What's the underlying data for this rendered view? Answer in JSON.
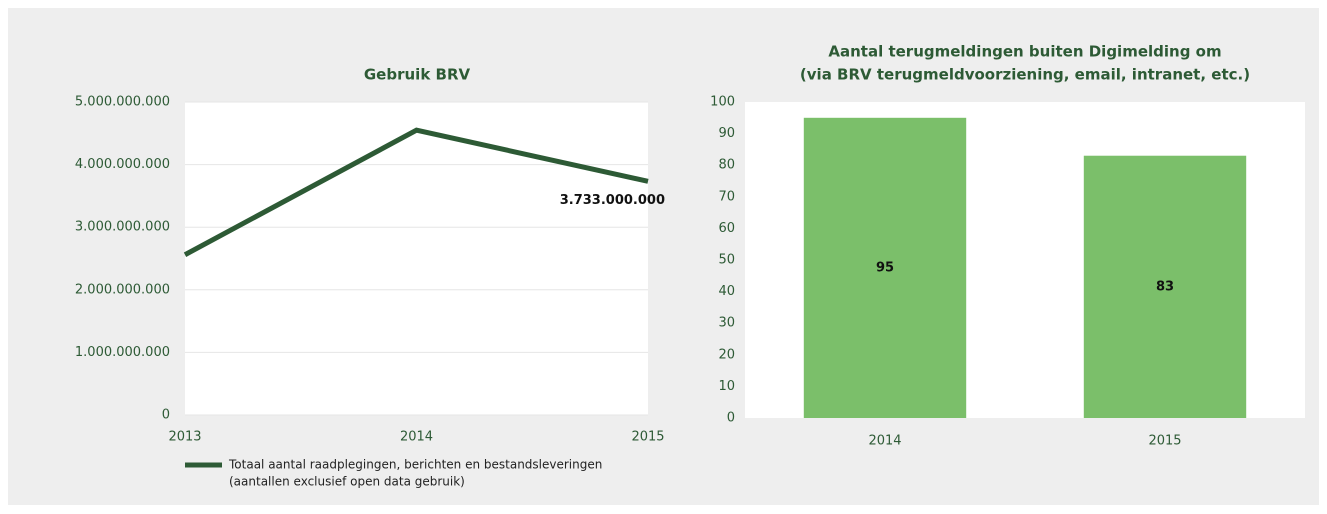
{
  "chart_data": [
    {
      "type": "line",
      "title": "Gebruik  BRV",
      "x": [
        2013,
        2014,
        2015
      ],
      "xlim": [
        2013,
        2015
      ],
      "xticks": [
        2013,
        2014,
        2015
      ],
      "series": [
        {
          "name": "Totaal aantal raadplegingen, berichten en bestandsleveringen",
          "color": "#2d5a35",
          "values": [
            2560000000,
            4550000000,
            3733000000
          ],
          "value_labels": [
            null,
            null,
            "3.733.000.000"
          ]
        }
      ],
      "legend_note": "(aantallen exclusief open data gebruik)",
      "ylim": [
        0,
        5000000000
      ],
      "yticks": [
        0,
        {
          "value": 1000000000,
          "label": "1.000.000.000"
        },
        {
          "value": 2000000000,
          "label": "2.000.000.000"
        },
        {
          "value": 3000000000,
          "label": "3.000.000.000"
        },
        {
          "value": 4000000000,
          "label": "4.000.000.000"
        },
        {
          "value": 5000000000,
          "label": "5.000.000.000"
        }
      ],
      "grid": true,
      "legend": "bottom"
    },
    {
      "type": "bar",
      "title": "Aantal terugmeldingen buiten Digimelding om",
      "subtitle": "(via BRV terugmeldvoorziening, email, intranet, etc.)",
      "categories": [
        "2014",
        "2015"
      ],
      "values": [
        95,
        83
      ],
      "color": "#7bbf6a",
      "ylim": [
        0,
        100
      ],
      "yticks": [
        0,
        10,
        20,
        30,
        40,
        50,
        60,
        70,
        80,
        90,
        100
      ],
      "grid": false
    }
  ]
}
